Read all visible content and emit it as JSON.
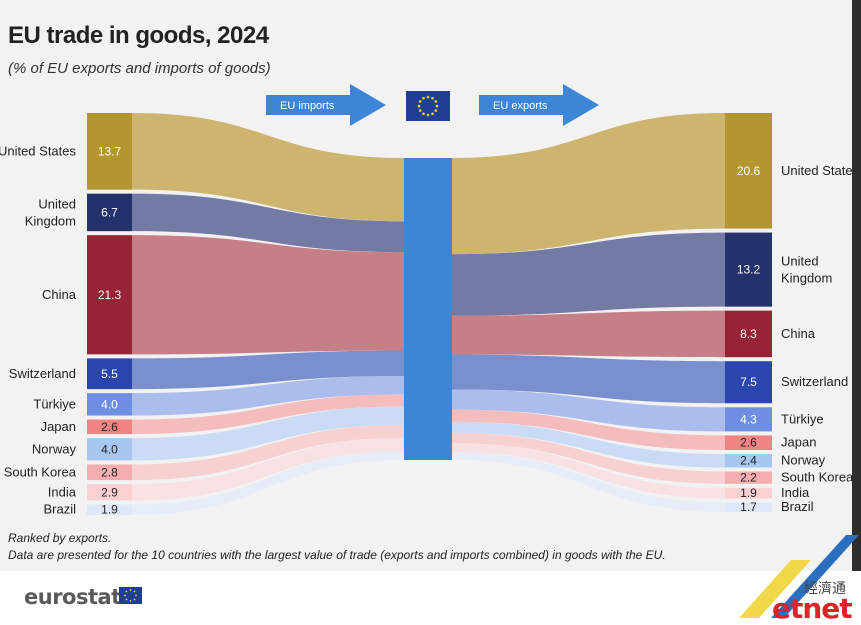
{
  "title": "EU trade in goods, 2024",
  "subtitle": "(% of EU exports and imports of goods)",
  "imports_label": "EU imports",
  "exports_label": "EU exports",
  "notes": [
    "Ranked by exports.",
    "Data are presented for the 10 countries with the largest value of trade (exports and imports combined) in goods with the EU."
  ],
  "footer": {
    "brand": "eurostat",
    "watermark_cn": "經濟通",
    "watermark": "etnet"
  },
  "colors": {
    "hub": "#3d85d6",
    "arrow": "#3d85d6",
    "eu_flag": "#1f3f95"
  },
  "chart_data": {
    "type": "sankey",
    "title": "EU trade in goods, 2024",
    "subtitle": "(% of EU exports and imports of goods)",
    "unit": "%",
    "countries": [
      {
        "import_label": "United States",
        "export_label": "United States",
        "imports": 13.7,
        "exports": 20.6,
        "color": "#b3962f",
        "flow": "#cdb56f"
      },
      {
        "import_label": "United Kingdom",
        "export_label": "United Kingdom",
        "imports": 6.7,
        "exports": 13.2,
        "color": "#23326a",
        "flow": "#737aa4"
      },
      {
        "import_label": "China",
        "export_label": "China",
        "imports": 21.3,
        "exports": 8.3,
        "color": "#962435",
        "flow": "#c67f86"
      },
      {
        "import_label": "Switzerland",
        "export_label": "Switzerland",
        "imports": 5.5,
        "exports": 7.5,
        "color": "#2a46ad",
        "flow": "#7a8fce"
      },
      {
        "import_label": "Türkiye",
        "export_label": "Türkiye",
        "imports": 4.0,
        "exports": 4.3,
        "color": "#6e8ee2",
        "flow": "#aabdec"
      },
      {
        "import_label": "Japan",
        "export_label": "Japan",
        "imports": 2.6,
        "exports": 2.6,
        "color": "#f08384",
        "flow": "#f5bcbd"
      },
      {
        "import_label": "Norway",
        "export_label": "Norway",
        "imports": 4.0,
        "exports": 2.4,
        "color": "#a8c6f2",
        "flow": "#cadcf5"
      },
      {
        "import_label": "South Korea",
        "export_label": "South Korea",
        "imports": 2.8,
        "exports": 2.2,
        "color": "#f5aeb0",
        "flow": "#f7d1d2"
      },
      {
        "import_label": "India",
        "export_label": "India",
        "imports": 2.9,
        "exports": 1.9,
        "color": "#fbd0d1",
        "flow": "#f8e1e2"
      },
      {
        "import_label": "Brazil",
        "export_label": "Brazil",
        "imports": 1.9,
        "exports": 1.7,
        "color": "#dfe8f8",
        "flow": "#e6edf8"
      }
    ]
  }
}
